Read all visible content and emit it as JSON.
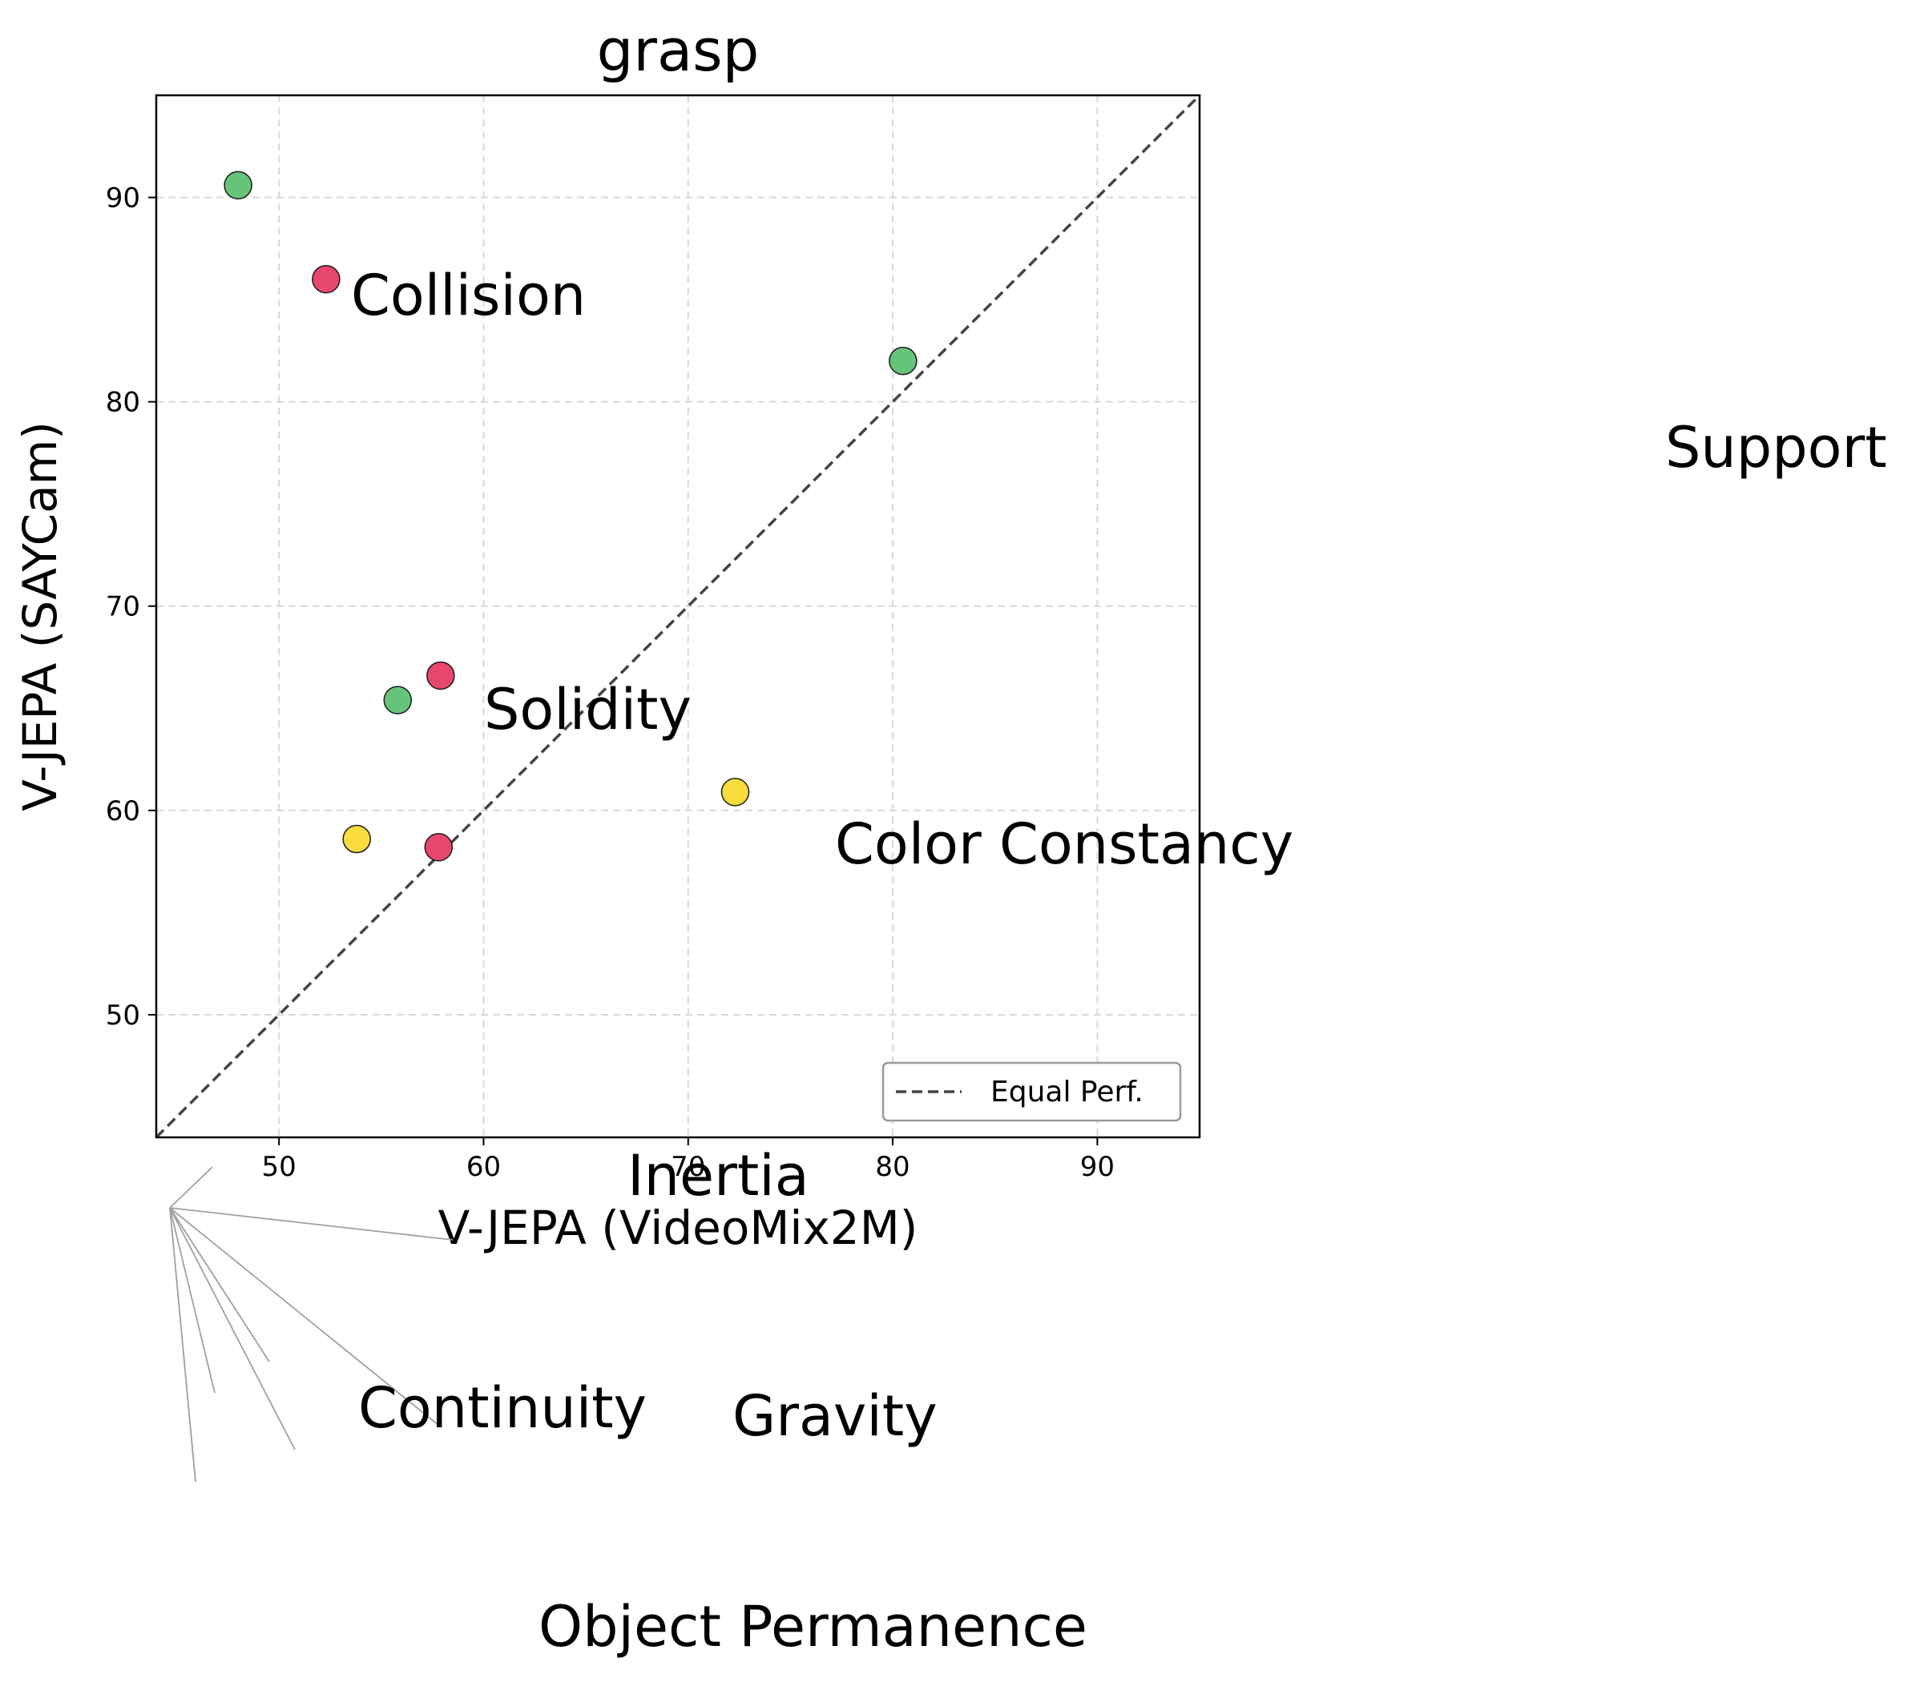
{
  "chart_data": {
    "type": "scatter",
    "title": "grasp",
    "xlabel": "V-JEPA (VideoMix2M)",
    "ylabel": "V-JEPA (SAYCam)",
    "xlim": [
      44,
      95
    ],
    "ylim": [
      44,
      95
    ],
    "xticks": [
      "50",
      "60",
      "70",
      "80",
      "90"
    ],
    "yticks": [
      "50",
      "60",
      "70",
      "80",
      "90"
    ],
    "grid": true,
    "legend": {
      "position": "lower-right",
      "entries": [
        "Equal Perf."
      ]
    },
    "reference_line": {
      "label": "Equal Perf.",
      "style": "dashed",
      "from": [
        44,
        44
      ],
      "to": [
        95,
        95
      ]
    },
    "colors": {
      "green": "#66c47a",
      "red": "#e8476d",
      "yellow": "#fadc3c"
    },
    "points": [
      {
        "x": 48.0,
        "y": 90.6,
        "color": "green"
      },
      {
        "x": 52.3,
        "y": 86.0,
        "color": "red"
      },
      {
        "x": 80.5,
        "y": 82.0,
        "color": "green"
      },
      {
        "x": 57.9,
        "y": 66.6,
        "color": "red"
      },
      {
        "x": 55.8,
        "y": 65.4,
        "color": "green"
      },
      {
        "x": 72.3,
        "y": 60.9,
        "color": "yellow"
      },
      {
        "x": 53.8,
        "y": 58.6,
        "color": "yellow"
      },
      {
        "x": 57.8,
        "y": 58.2,
        "color": "red"
      }
    ],
    "annotations": [
      "Collision",
      "Support",
      "Solidity",
      "Color Constancy",
      "Inertia",
      "Continuity",
      "Gravity",
      "Object Permanence"
    ]
  }
}
